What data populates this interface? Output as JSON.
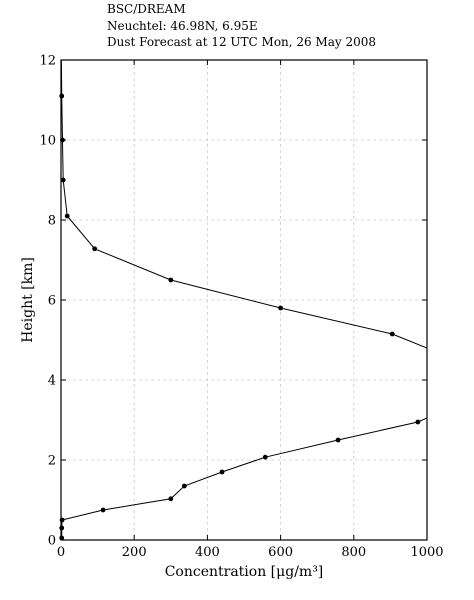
{
  "header": {
    "line1": "BSC/DREAM",
    "line2": "Neuchtel: 46.98N, 6.95E",
    "line3": "Dust Forecast at 12 UTC Mon, 26 May 2008"
  },
  "chart_data": {
    "type": "line",
    "title": "",
    "xlabel": "Concentration [μg/m³]",
    "ylabel": "Height [km]",
    "xlim": [
      0,
      1000
    ],
    "ylim": [
      0,
      12
    ],
    "xticks": [
      0,
      200,
      400,
      600,
      800,
      1000
    ],
    "yticks": [
      0,
      2,
      4,
      6,
      8,
      10,
      12
    ],
    "grid": true,
    "series": [
      {
        "points": [
          [
            2,
            0.05
          ],
          [
            2,
            0.3
          ],
          [
            3,
            0.5
          ],
          [
            115,
            0.75
          ],
          [
            300,
            1.03
          ],
          [
            337,
            1.35
          ],
          [
            440,
            1.7
          ],
          [
            558,
            2.07
          ],
          [
            757,
            2.5
          ],
          [
            975,
            2.95
          ],
          [
            1000,
            3.05
          ],
          [
            1000,
            4.8
          ],
          [
            905,
            5.15
          ],
          [
            600,
            5.8
          ],
          [
            300,
            6.5
          ],
          [
            92,
            7.28
          ],
          [
            17,
            8.1
          ],
          [
            6,
            9.0
          ],
          [
            4,
            10.0
          ],
          [
            2,
            11.1
          ],
          [
            1,
            12.0
          ]
        ],
        "markers": [
          [
            2,
            0.05
          ],
          [
            2,
            0.3
          ],
          [
            3,
            0.5
          ],
          [
            115,
            0.75
          ],
          [
            300,
            1.03
          ],
          [
            337,
            1.35
          ],
          [
            440,
            1.7
          ],
          [
            558,
            2.07
          ],
          [
            757,
            2.5
          ],
          [
            975,
            2.95
          ],
          [
            905,
            5.15
          ],
          [
            600,
            5.8
          ],
          [
            300,
            6.5
          ],
          [
            92,
            7.28
          ],
          [
            17,
            8.1
          ],
          [
            6,
            9.0
          ],
          [
            4,
            10.0
          ],
          [
            2,
            11.1
          ]
        ]
      }
    ]
  }
}
